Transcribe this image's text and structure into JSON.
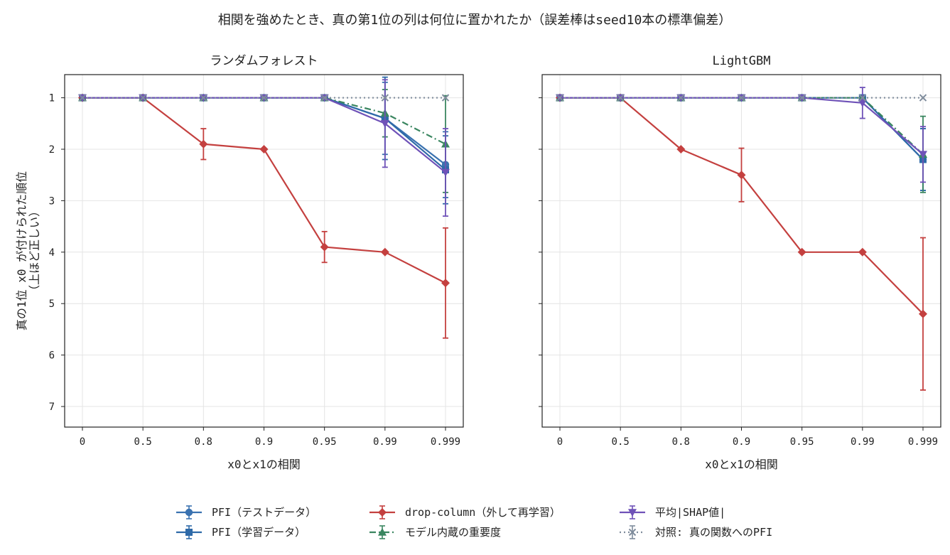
{
  "suptitle": "相関を強めたとき、真の第1位の列は何位に置かれたか（誤差棒はseed10本の標準偏差）",
  "legend": {
    "placement": "bottom-center",
    "entries": [
      "PFI（テストデータ）",
      "PFI（学習データ）",
      "drop-column（外して再学習）",
      "モデル内蔵の重要度",
      "平均|SHAP値|",
      "対照: 真の関数へのPFI"
    ]
  },
  "series_style": [
    {
      "color": "#3a72b0",
      "marker": "circle",
      "dash": "solid"
    },
    {
      "color": "#2e6aa8",
      "marker": "square",
      "dash": "solid"
    },
    {
      "color": "#c4403f",
      "marker": "diamond",
      "dash": "solid"
    },
    {
      "color": "#3a8660",
      "marker": "triangle-up",
      "dash": "dashdot"
    },
    {
      "color": "#6f52b8",
      "marker": "triangle-down",
      "dash": "solid"
    },
    {
      "color": "#7f8c9c",
      "marker": "x",
      "dash": "dotted"
    }
  ],
  "chart_data": [
    {
      "type": "line",
      "title": "ランダムフォレスト",
      "xlabel": "x0とx1の相関",
      "ylabel": "真の1位 x0 が付けられた順位\n（上ほど正しい）",
      "categories": [
        "0",
        "0.5",
        "0.8",
        "0.9",
        "0.95",
        "0.99",
        "0.999"
      ],
      "ylim": [
        7.4,
        0.55
      ],
      "y_inverted": true,
      "yticks": [
        "1",
        "2",
        "3",
        "4",
        "5",
        "6",
        "7"
      ],
      "grid": true,
      "series": [
        {
          "name": "PFI（テストデータ）",
          "values": [
            1,
            1,
            1,
            1,
            1,
            1.4,
            2.3
          ],
          "err": [
            0,
            0,
            0,
            0,
            0,
            0.7,
            0.64
          ]
        },
        {
          "name": "PFI（学習データ）",
          "values": [
            1,
            1,
            1,
            1,
            1,
            1.4,
            2.4
          ],
          "err": [
            0,
            0,
            0,
            0,
            0,
            0.8,
            0.66
          ]
        },
        {
          "name": "drop-column（外して再学習）",
          "values": [
            1,
            1,
            1.9,
            2.0,
            3.9,
            4.0,
            4.6
          ],
          "err": [
            0,
            0,
            0.3,
            0,
            0.3,
            0,
            1.07
          ]
        },
        {
          "name": "モデル内蔵の重要度",
          "values": [
            1,
            1,
            1,
            1,
            1,
            1.3,
            1.9
          ],
          "err": [
            0,
            0,
            0,
            0,
            0,
            0.46,
            0.94
          ]
        },
        {
          "name": "平均|SHAP値|",
          "values": [
            1,
            1,
            1,
            1,
            1,
            1.5,
            2.45
          ],
          "err": [
            0,
            0,
            0,
            0,
            0,
            0.85,
            0.85
          ]
        },
        {
          "name": "対照: 真の関数へのPFI",
          "values": [
            1,
            1,
            1,
            1,
            1,
            1,
            1
          ],
          "err": [
            0,
            0,
            0,
            0,
            0,
            0,
            0
          ]
        }
      ]
    },
    {
      "type": "line",
      "title": "LightGBM",
      "xlabel": "x0とx1の相関",
      "ylabel": "",
      "categories": [
        "0",
        "0.5",
        "0.8",
        "0.9",
        "0.95",
        "0.99",
        "0.999"
      ],
      "ylim": [
        7.4,
        0.55
      ],
      "y_inverted": true,
      "yticks": [
        "1",
        "2",
        "3",
        "4",
        "5",
        "6",
        "7"
      ],
      "grid": true,
      "series": [
        {
          "name": "PFI（テストデータ）",
          "values": [
            1,
            1,
            1,
            1,
            1,
            1,
            2.2
          ],
          "err": [
            0,
            0,
            0,
            0,
            0,
            0,
            0.6
          ]
        },
        {
          "name": "PFI（学習データ）",
          "values": [
            1,
            1,
            1,
            1,
            1,
            1,
            2.2
          ],
          "err": [
            0,
            0,
            0,
            0,
            0,
            0,
            0.6
          ]
        },
        {
          "name": "drop-column（外して再学習）",
          "values": [
            1,
            1,
            2.0,
            2.5,
            4.0,
            4.0,
            5.2
          ],
          "err": [
            0,
            0,
            0,
            0.52,
            0,
            0,
            1.48
          ]
        },
        {
          "name": "モデル内蔵の重要度",
          "values": [
            1,
            1,
            1,
            1,
            1,
            1,
            2.1
          ],
          "err": [
            0,
            0,
            0,
            0,
            0,
            0,
            0.74
          ]
        },
        {
          "name": "平均|SHAP値|",
          "values": [
            1,
            1,
            1,
            1,
            1,
            1.1,
            2.1
          ],
          "err": [
            0,
            0,
            0,
            0,
            0,
            0.3,
            0.54
          ]
        },
        {
          "name": "対照: 真の関数へのPFI",
          "values": [
            1,
            1,
            1,
            1,
            1,
            1,
            1
          ],
          "err": [
            0,
            0,
            0,
            0,
            0,
            0,
            0
          ]
        }
      ]
    }
  ]
}
